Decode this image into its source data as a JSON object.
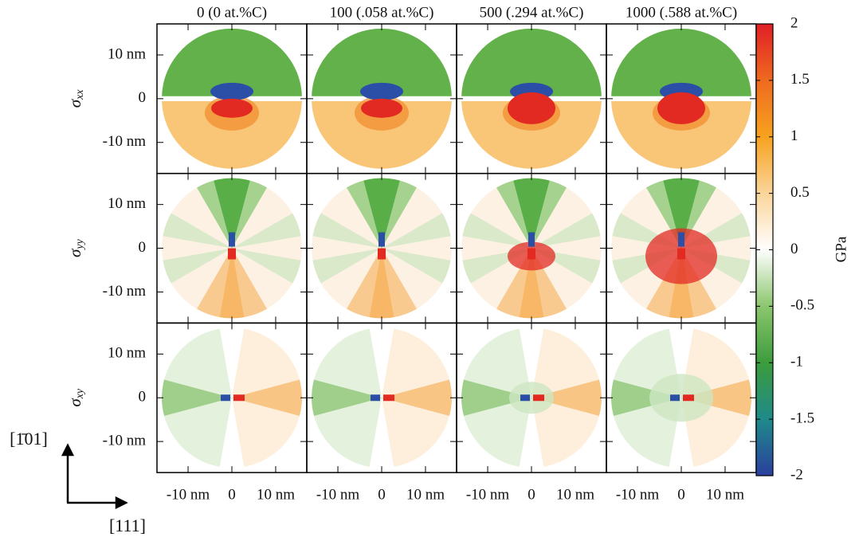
{
  "chart_data": {
    "type": "heatmap",
    "columns": [
      "0 (0 at.%C)",
      "100 (.058 at.%C)",
      "500 (.294 at.%C)",
      "1000 (.588 at.%C)"
    ],
    "rows": [
      {
        "symbol": "σ",
        "subscript": "xx"
      },
      {
        "symbol": "σ",
        "subscript": "yy"
      },
      {
        "symbol": "σ",
        "subscript": "xy"
      }
    ],
    "xlim": [
      -17.1,
      17.1
    ],
    "ylim": [
      -17.1,
      17.1
    ],
    "xticks": [
      {
        "value": -10,
        "label": "-10 nm"
      },
      0,
      {
        "value": 10,
        "label": "10 nm"
      }
    ],
    "yticks": [
      {
        "value": -10,
        "label": "-10 nm"
      },
      0,
      {
        "value": 10,
        "label": "10 nm"
      }
    ],
    "clim": [
      -2,
      2
    ],
    "cticks": [
      -2,
      -1.5,
      -1,
      -0.5,
      0,
      0.5,
      1,
      1.5,
      2
    ],
    "colorbar_label": "GPa",
    "colormap": [
      "#2a3f9e",
      "#1f8a8a",
      "#3c9c3c",
      "#8cc66e",
      "#ffffff",
      "#fbd59a",
      "#f7a21f",
      "#ef6a1f",
      "#e01f26"
    ],
    "directions": {
      "vertical": "[1̄01]",
      "horizontal": "[111]"
    }
  }
}
